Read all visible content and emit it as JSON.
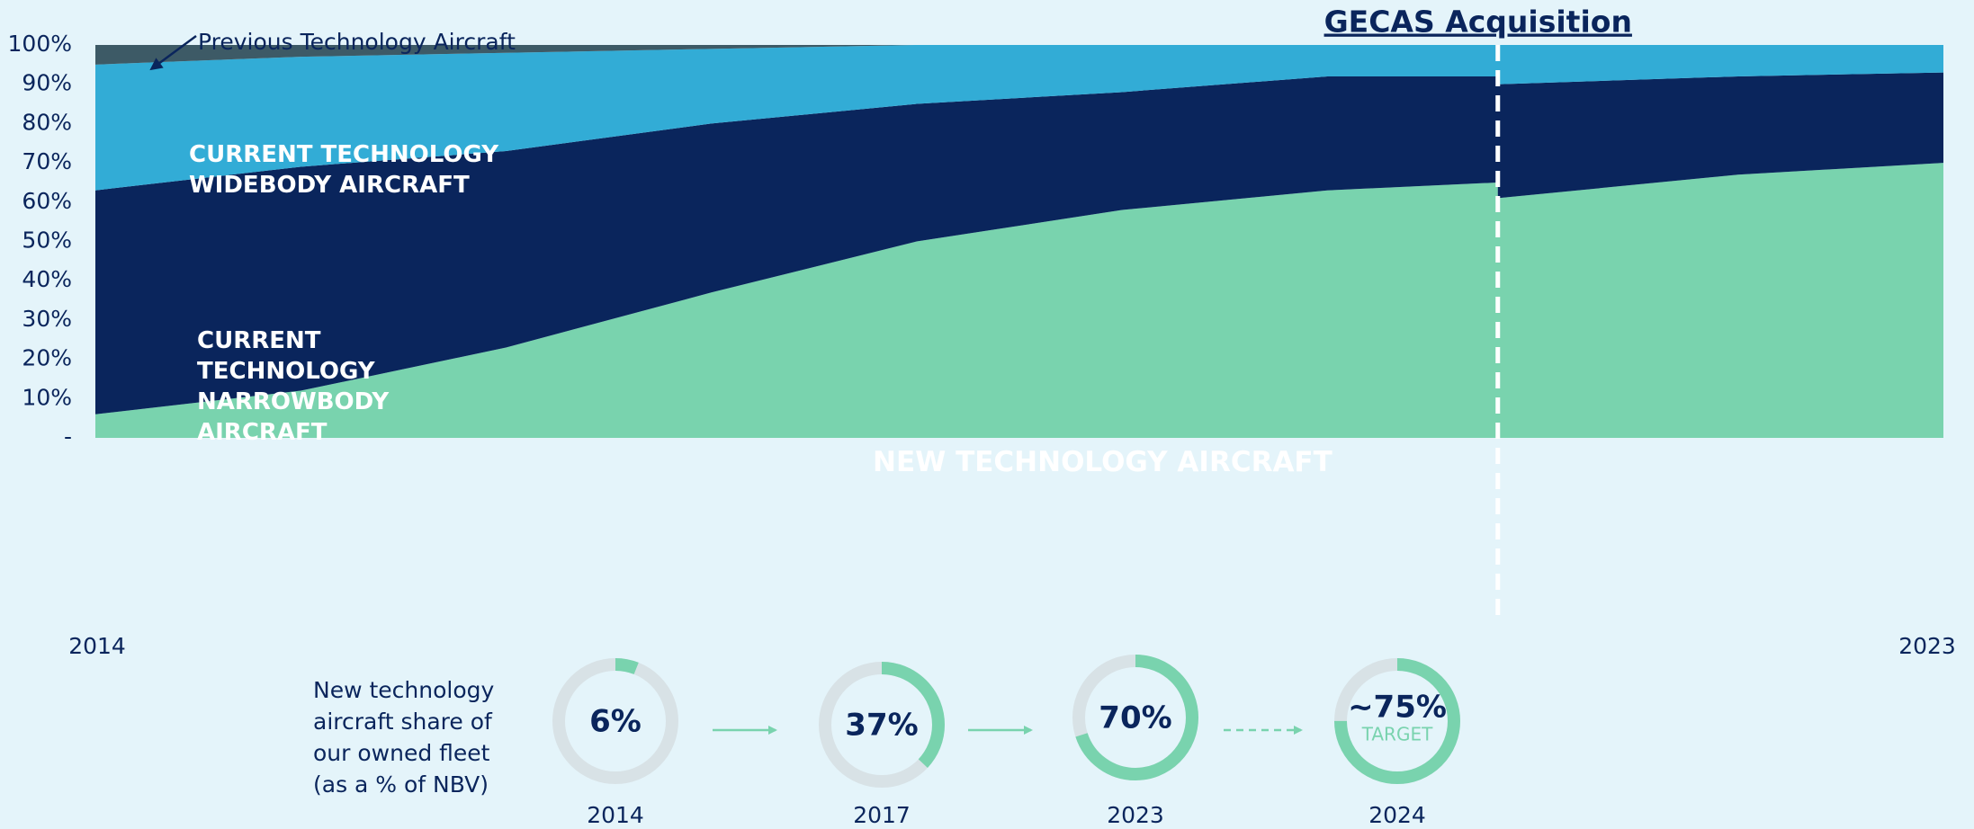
{
  "chart_data": [
    {
      "type": "stacked_area",
      "x": [
        2014,
        2015,
        2016,
        2017,
        2018,
        2019,
        2020,
        2020.83,
        2020.83,
        2022,
        2023
      ],
      "xlim": [
        2014,
        2023
      ],
      "xticks": [
        2014,
        2023
      ],
      "ylim": [
        0,
        100
      ],
      "yticks": [
        {
          "value": 0,
          "label": "-"
        },
        {
          "value": 10,
          "label": "10%"
        },
        {
          "value": 20,
          "label": "20%"
        },
        {
          "value": 30,
          "label": "30%"
        },
        {
          "value": 40,
          "label": "40%"
        },
        {
          "value": 50,
          "label": "50%"
        },
        {
          "value": 60,
          "label": "60%"
        },
        {
          "value": 70,
          "label": "70%"
        },
        {
          "value": 80,
          "label": "80%"
        },
        {
          "value": 90,
          "label": "90%"
        },
        {
          "value": 100,
          "label": "100%"
        }
      ],
      "series": [
        {
          "name": "NEW TECHNOLOGY AIRCRAFT",
          "color": "#79d3ae",
          "values": [
            6,
            12,
            23,
            37,
            50,
            58,
            63,
            65,
            61,
            67,
            70
          ]
        },
        {
          "name": "CURRENT TECHNOLOGY NARROWBODY AIRCRAFT",
          "color": "#0a255c",
          "values": [
            57,
            57,
            50,
            43,
            35,
            30,
            29,
            27,
            29,
            25,
            23
          ]
        },
        {
          "name": "CURRENT TECHNOLOGY WIDEBODY AIRCRAFT",
          "color": "#32acd6",
          "values": [
            32,
            28,
            25,
            19,
            15,
            12,
            8,
            8,
            10,
            8,
            7
          ]
        },
        {
          "name": "Previous Technology Aircraft",
          "color": "#3d5a66",
          "values": [
            5,
            3,
            2,
            1,
            0,
            0,
            0,
            0,
            0,
            0,
            0
          ]
        }
      ],
      "event": {
        "x": 2020.83,
        "label": "GECAS Acquisition"
      }
    },
    {
      "type": "donut",
      "title": "New technology aircraft share of our owned fleet (as a % of NBV)",
      "categories": [
        "2014",
        "2017",
        "2023",
        "2024"
      ],
      "values": [
        6,
        37,
        70,
        75
      ],
      "value_labels": [
        "6%",
        "37%",
        "70%",
        "~75%"
      ],
      "annotation": "TARGET",
      "color": "#79d3ae",
      "track_color": "#d8e2e6"
    }
  ]
}
